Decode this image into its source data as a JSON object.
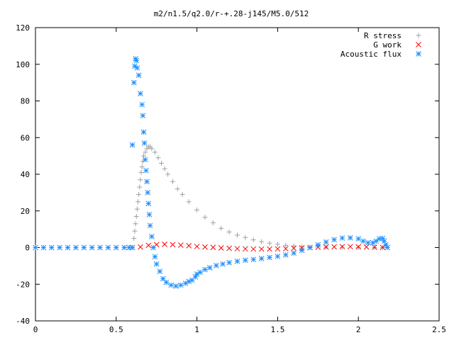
{
  "chart_data": {
    "type": "scatter",
    "title": "m2/n1.5/q2.0/r-+.28-j145/M5.0/512",
    "xlabel": "",
    "ylabel": "",
    "xlim": [
      0,
      2.5
    ],
    "ylim": [
      -40,
      120
    ],
    "xticks": [
      "0",
      "0.5",
      "1",
      "1.5",
      "2",
      "2.5"
    ],
    "yticks": [
      "-40",
      "-20",
      "0",
      "20",
      "40",
      "60",
      "80",
      "100",
      "120"
    ],
    "grid": false,
    "legend_position": "top-right",
    "series": [
      {
        "name": "R stress",
        "marker": "+",
        "color": "#a0a0a0",
        "points": [
          [
            0.61,
            5
          ],
          [
            0.615,
            9
          ],
          [
            0.62,
            13
          ],
          [
            0.625,
            17
          ],
          [
            0.63,
            21
          ],
          [
            0.635,
            25
          ],
          [
            0.64,
            29
          ],
          [
            0.645,
            33
          ],
          [
            0.65,
            37
          ],
          [
            0.655,
            41
          ],
          [
            0.66,
            44
          ],
          [
            0.665,
            47
          ],
          [
            0.67,
            50
          ],
          [
            0.68,
            52
          ],
          [
            0.69,
            54
          ],
          [
            0.7,
            55
          ],
          [
            0.71,
            55
          ],
          [
            0.72,
            54
          ],
          [
            0.74,
            52
          ],
          [
            0.76,
            49
          ],
          [
            0.78,
            46
          ],
          [
            0.8,
            43
          ],
          [
            0.82,
            40
          ],
          [
            0.85,
            36
          ],
          [
            0.88,
            32
          ],
          [
            0.91,
            29
          ],
          [
            0.95,
            25
          ],
          [
            1.0,
            20.5
          ],
          [
            1.05,
            16.5
          ],
          [
            1.1,
            13.5
          ],
          [
            1.15,
            10.5
          ],
          [
            1.2,
            8.5
          ],
          [
            1.25,
            6.8
          ],
          [
            1.3,
            5.5
          ],
          [
            1.35,
            4.2
          ],
          [
            1.4,
            3.2
          ],
          [
            1.45,
            2.4
          ],
          [
            1.5,
            1.8
          ],
          [
            1.55,
            1.2
          ],
          [
            1.6,
            0.9
          ],
          [
            1.65,
            0.6
          ],
          [
            1.7,
            0.4
          ],
          [
            1.8,
            0.2
          ],
          [
            1.9,
            0.1
          ],
          [
            2.0,
            0
          ],
          [
            2.1,
            0
          ],
          [
            2.15,
            0
          ]
        ]
      },
      {
        "name": "G work",
        "marker": "x",
        "color": "#ff0000",
        "points": [
          [
            0.6,
            0
          ],
          [
            0.65,
            0.3
          ],
          [
            0.7,
            1.2
          ],
          [
            0.75,
            1.6
          ],
          [
            0.8,
            1.8
          ],
          [
            0.85,
            1.6
          ],
          [
            0.9,
            1.3
          ],
          [
            0.95,
            1.0
          ],
          [
            1.0,
            0.6
          ],
          [
            1.05,
            0.3
          ],
          [
            1.1,
            0.1
          ],
          [
            1.15,
            -0.2
          ],
          [
            1.2,
            -0.4
          ],
          [
            1.25,
            -0.6
          ],
          [
            1.3,
            -0.7
          ],
          [
            1.35,
            -0.8
          ],
          [
            1.4,
            -0.8
          ],
          [
            1.45,
            -0.8
          ],
          [
            1.5,
            -0.7
          ],
          [
            1.55,
            -0.6
          ],
          [
            1.6,
            -0.4
          ],
          [
            1.65,
            -0.2
          ],
          [
            1.7,
            0
          ],
          [
            1.75,
            0.2
          ],
          [
            1.8,
            0.3
          ],
          [
            1.85,
            0.4
          ],
          [
            1.9,
            0.5
          ],
          [
            1.95,
            0.5
          ],
          [
            2.0,
            0.4
          ],
          [
            2.05,
            0.3
          ],
          [
            2.1,
            0.2
          ],
          [
            2.15,
            0.1
          ]
        ]
      },
      {
        "name": "Acoustic flux",
        "marker": "*",
        "color": "#1e90ff",
        "points": [
          [
            0,
            0
          ],
          [
            0.05,
            0
          ],
          [
            0.1,
            0
          ],
          [
            0.15,
            0
          ],
          [
            0.2,
            0
          ],
          [
            0.25,
            0
          ],
          [
            0.3,
            0
          ],
          [
            0.35,
            0
          ],
          [
            0.4,
            0
          ],
          [
            0.45,
            0
          ],
          [
            0.5,
            0
          ],
          [
            0.55,
            0
          ],
          [
            0.58,
            0
          ],
          [
            0.6,
            0
          ],
          [
            0.6,
            56
          ],
          [
            0.61,
            90
          ],
          [
            0.615,
            99
          ],
          [
            0.62,
            103
          ],
          [
            0.625,
            102
          ],
          [
            0.63,
            98
          ],
          [
            0.64,
            94
          ],
          [
            0.65,
            84
          ],
          [
            0.66,
            78
          ],
          [
            0.665,
            72
          ],
          [
            0.67,
            63
          ],
          [
            0.675,
            57
          ],
          [
            0.68,
            48
          ],
          [
            0.685,
            42
          ],
          [
            0.69,
            36
          ],
          [
            0.695,
            30
          ],
          [
            0.7,
            24
          ],
          [
            0.705,
            18
          ],
          [
            0.71,
            12
          ],
          [
            0.72,
            6
          ],
          [
            0.73,
            0
          ],
          [
            0.74,
            -5
          ],
          [
            0.75,
            -9
          ],
          [
            0.77,
            -13
          ],
          [
            0.79,
            -17
          ],
          [
            0.81,
            -19
          ],
          [
            0.84,
            -20.5
          ],
          [
            0.87,
            -21
          ],
          [
            0.9,
            -20.5
          ],
          [
            0.93,
            -19.5
          ],
          [
            0.95,
            -18.5
          ],
          [
            0.97,
            -17.8
          ],
          [
            0.99,
            -16
          ],
          [
            1.0,
            -14.5
          ],
          [
            1.02,
            -13.5
          ],
          [
            1.05,
            -12
          ],
          [
            1.08,
            -11
          ],
          [
            1.12,
            -9.8
          ],
          [
            1.16,
            -9
          ],
          [
            1.2,
            -8.2
          ],
          [
            1.25,
            -7.5
          ],
          [
            1.3,
            -6.9
          ],
          [
            1.35,
            -6.5
          ],
          [
            1.4,
            -6
          ],
          [
            1.45,
            -5.4
          ],
          [
            1.5,
            -4.8
          ],
          [
            1.55,
            -4
          ],
          [
            1.6,
            -3
          ],
          [
            1.65,
            -1.5
          ],
          [
            1.7,
            0
          ],
          [
            1.75,
            1.5
          ],
          [
            1.8,
            3
          ],
          [
            1.85,
            4.3
          ],
          [
            1.9,
            5.2
          ],
          [
            1.95,
            5.3
          ],
          [
            2.0,
            4.8
          ],
          [
            2.03,
            3.5
          ],
          [
            2.06,
            2.6
          ],
          [
            2.09,
            2.6
          ],
          [
            2.11,
            3.5
          ],
          [
            2.13,
            4.8
          ],
          [
            2.15,
            5.0
          ],
          [
            2.16,
            3.5
          ],
          [
            2.17,
            1.5
          ],
          [
            2.18,
            0
          ]
        ]
      }
    ]
  }
}
